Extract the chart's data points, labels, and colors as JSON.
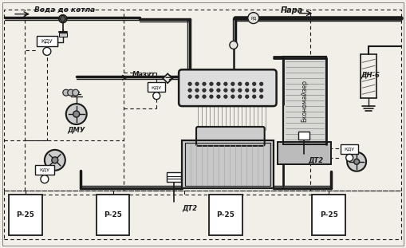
{
  "bg_color": "#f2efe9",
  "line_color": "#1a1a1a",
  "dashed_color": "#1a1a1a",
  "labels": {
    "voda": "Вода до котла",
    "para": "Пара",
    "mazut": "Мазут",
    "ekonomaizer": "Економайзер",
    "kdu": "КДУ",
    "dmu": "ДМУ",
    "dn6": "ДН-6",
    "dt2_right": "ДТ2",
    "dt2_bottom": "ДТ2",
    "r25": "Р-25",
    "kdu2": "КДУ",
    "kdu3": "КДУ",
    "kdu4": "КДУ",
    "rd": "РД"
  },
  "figsize": [
    5.09,
    3.11
  ],
  "dpi": 100
}
